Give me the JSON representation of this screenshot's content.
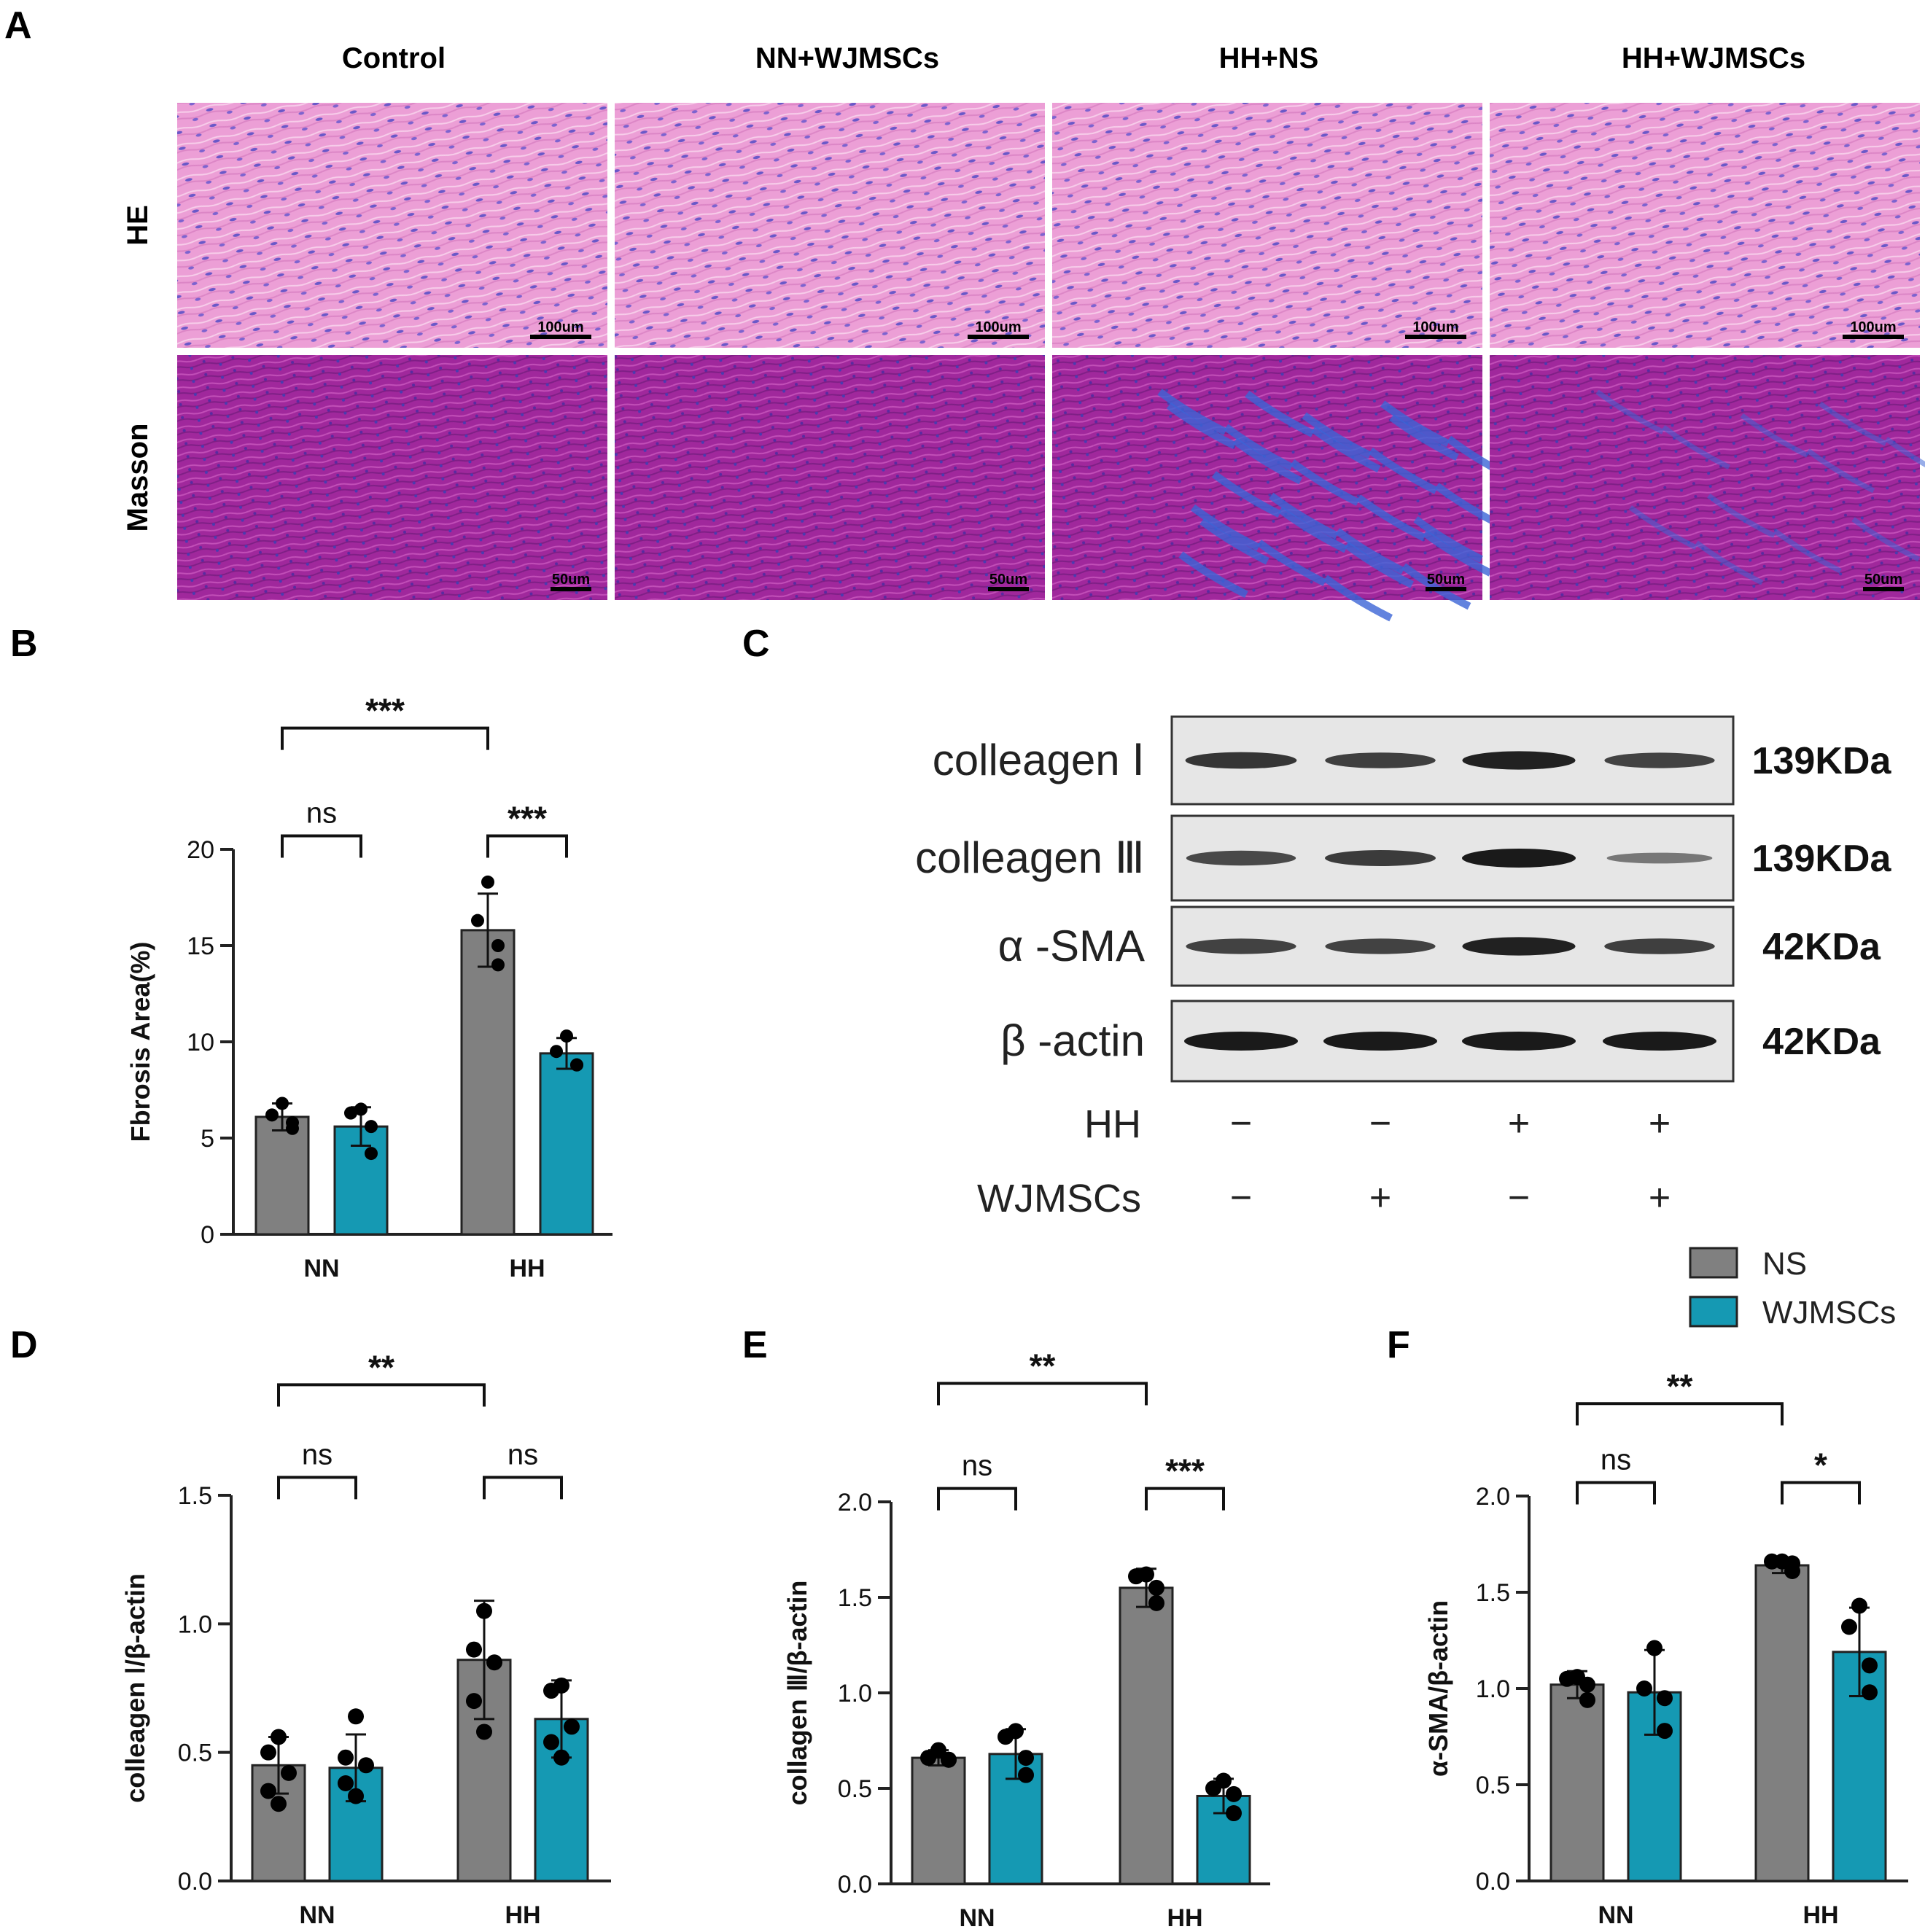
{
  "colors": {
    "ns": "#808080",
    "wjmscs": "#1599b3",
    "he_tissue": "#ec9fd6",
    "he_nuclei": "#6a58c8",
    "masson_tissue": "#a0289c",
    "masson_collagen": "#3b64d6",
    "blot_bg": "#e6e6e6",
    "band": "#1a1a1a"
  },
  "panel_letters": {
    "a": "A",
    "b": "B",
    "c": "C",
    "d": "D",
    "e": "E",
    "f": "F"
  },
  "panel_a": {
    "columns": [
      "Control",
      "NN+WJMSCs",
      "HH+NS",
      "HH+WJMSCs"
    ],
    "rows": [
      {
        "label": "HE",
        "stain": "he",
        "scale_bar": "100um"
      },
      {
        "label": "Masson",
        "stain": "masson",
        "scale_bar": "50um"
      }
    ],
    "collagen_intensity": [
      0.05,
      0.08,
      0.9,
      0.35
    ]
  },
  "panel_c": {
    "bands": [
      {
        "label": "colleagen Ⅰ",
        "kda": "139KDa",
        "intensity": [
          0.8,
          0.72,
          0.95,
          0.7
        ]
      },
      {
        "label": "colleagen Ⅲ",
        "kda": "139KDa",
        "intensity": [
          0.65,
          0.75,
          1.0,
          0.3
        ]
      },
      {
        "label": "α -SMA",
        "kda": "42KDa",
        "intensity": [
          0.7,
          0.7,
          0.95,
          0.72
        ]
      },
      {
        "label": "β -actin",
        "kda": "42KDa",
        "intensity": [
          1.0,
          1.0,
          1.0,
          1.0
        ]
      }
    ],
    "conditions": [
      {
        "label": "HH",
        "values": [
          "−",
          "−",
          "+",
          "+"
        ]
      },
      {
        "label": "WJMSCs",
        "values": [
          "−",
          "+",
          "−",
          "+"
        ]
      }
    ]
  },
  "legend": [
    {
      "name": "NS",
      "color": "#808080"
    },
    {
      "name": "WJMSCs",
      "color": "#1599b3"
    }
  ],
  "chart_data": [
    {
      "panel": "B",
      "type": "bar",
      "ylabel": "Fbrosis Area(%)",
      "categories": [
        "NN",
        "HH"
      ],
      "ylim": [
        0,
        20
      ],
      "yticks": [
        0,
        5,
        10,
        15,
        20
      ],
      "series": [
        {
          "name": "NS",
          "values": [
            6.1,
            15.8
          ],
          "errors": [
            0.7,
            1.9
          ],
          "points": [
            [
              6.8,
              6.2,
              5.8,
              5.5
            ],
            [
              18.3,
              16.3,
              15.0,
              14.0
            ]
          ]
        },
        {
          "name": "WJMSCs",
          "values": [
            5.6,
            9.4
          ],
          "errors": [
            1.0,
            0.8
          ],
          "points": [
            [
              6.5,
              6.3,
              5.6,
              4.2
            ],
            [
              10.3,
              9.5,
              8.8,
              8.8
            ]
          ]
        }
      ],
      "significance": [
        {
          "from": [
            0,
            0
          ],
          "to": [
            1,
            0
          ],
          "label": "***",
          "level": 26.3
        },
        {
          "from": [
            0,
            0
          ],
          "to": [
            0,
            1
          ],
          "label": "ns",
          "level": 20.7
        },
        {
          "from": [
            1,
            0
          ],
          "to": [
            1,
            1
          ],
          "label": "***",
          "level": 20.7
        }
      ]
    },
    {
      "panel": "D",
      "type": "bar",
      "ylabel": "colleagen Ⅰ/β-actin",
      "categories": [
        "NN",
        "HH"
      ],
      "ylim": [
        0,
        1.5
      ],
      "yticks": [
        0.0,
        0.5,
        1.0,
        1.5
      ],
      "tick_labels": [
        "0.0",
        "0.5",
        "1.0",
        "1.5"
      ],
      "series": [
        {
          "name": "NS",
          "values": [
            0.45,
            0.86
          ],
          "errors": [
            0.11,
            0.23
          ],
          "points": [
            [
              0.56,
              0.5,
              0.42,
              0.35,
              0.3
            ],
            [
              1.05,
              0.9,
              0.85,
              0.7,
              0.58
            ]
          ]
        },
        {
          "name": "WJMSCs",
          "values": [
            0.44,
            0.63
          ],
          "errors": [
            0.13,
            0.15
          ],
          "points": [
            [
              0.64,
              0.48,
              0.45,
              0.38,
              0.33
            ],
            [
              0.76,
              0.74,
              0.6,
              0.54,
              0.48
            ]
          ]
        }
      ],
      "significance": [
        {
          "from": [
            0,
            0
          ],
          "to": [
            1,
            0
          ],
          "label": "**",
          "level": 1.93
        },
        {
          "from": [
            0,
            0
          ],
          "to": [
            0,
            1
          ],
          "label": "ns",
          "level": 1.57
        },
        {
          "from": [
            1,
            0
          ],
          "to": [
            1,
            1
          ],
          "label": "ns",
          "level": 1.57
        }
      ]
    },
    {
      "panel": "E",
      "type": "bar",
      "ylabel": "collagen Ⅲ/β-actin",
      "categories": [
        "NN",
        "HH"
      ],
      "ylim": [
        0,
        2.0
      ],
      "yticks": [
        0.0,
        0.5,
        1.0,
        1.5,
        2.0
      ],
      "tick_labels": [
        "0.0",
        "0.5",
        "1.0",
        "1.5",
        "2.0"
      ],
      "series": [
        {
          "name": "NS",
          "values": [
            0.66,
            1.55
          ],
          "errors": [
            0.04,
            0.1
          ],
          "points": [
            [
              0.7,
              0.66,
              0.65,
              0.65
            ],
            [
              1.62,
              1.61,
              1.55,
              1.47
            ]
          ]
        },
        {
          "name": "WJMSCs",
          "values": [
            0.68,
            0.46
          ],
          "errors": [
            0.13,
            0.09
          ],
          "points": [
            [
              0.8,
              0.77,
              0.66,
              0.57
            ],
            [
              0.54,
              0.5,
              0.47,
              0.37
            ]
          ]
        }
      ],
      "significance": [
        {
          "from": [
            0,
            0
          ],
          "to": [
            1,
            0
          ],
          "label": "**",
          "level": 2.62
        },
        {
          "from": [
            0,
            0
          ],
          "to": [
            0,
            1
          ],
          "label": "ns",
          "level": 2.07
        },
        {
          "from": [
            1,
            0
          ],
          "to": [
            1,
            1
          ],
          "label": "***",
          "level": 2.07
        }
      ]
    },
    {
      "panel": "F",
      "type": "bar",
      "ylabel": "α-SMA/β-actin",
      "categories": [
        "NN",
        "HH"
      ],
      "ylim": [
        0,
        2.0
      ],
      "yticks": [
        0.0,
        0.5,
        1.0,
        1.5,
        2.0
      ],
      "tick_labels": [
        "0.0",
        "0.5",
        "1.0",
        "1.5",
        "2.0"
      ],
      "series": [
        {
          "name": "NS",
          "values": [
            1.02,
            1.64
          ],
          "errors": [
            0.07,
            0.04
          ],
          "points": [
            [
              1.06,
              1.05,
              1.02,
              0.94
            ],
            [
              1.66,
              1.66,
              1.65,
              1.61
            ]
          ]
        },
        {
          "name": "WJMSCs",
          "values": [
            0.98,
            1.19
          ],
          "errors": [
            0.22,
            0.23
          ],
          "points": [
            [
              1.21,
              1.0,
              0.95,
              0.78
            ],
            [
              1.43,
              1.32,
              1.12,
              0.98
            ]
          ]
        }
      ],
      "significance": [
        {
          "from": [
            0,
            0
          ],
          "to": [
            1,
            0
          ],
          "label": "**",
          "level": 2.48
        },
        {
          "from": [
            0,
            0
          ],
          "to": [
            0,
            1
          ],
          "label": "ns",
          "level": 2.07
        },
        {
          "from": [
            1,
            0
          ],
          "to": [
            1,
            1
          ],
          "label": "*",
          "level": 2.07
        }
      ]
    }
  ]
}
